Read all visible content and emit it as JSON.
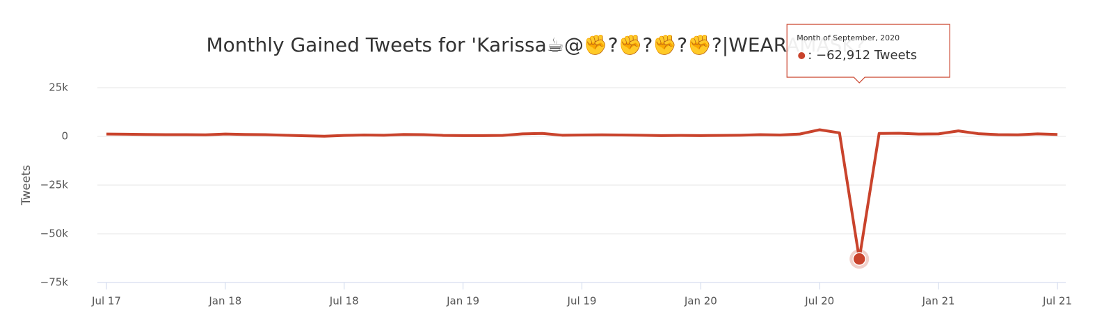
{
  "chart_data": {
    "type": "line",
    "title": "Monthly Gained Tweets for 'Karissa☕@✊?✊?✊?✊?|WEARAMASK?",
    "y_label": "Tweets",
    "x": [
      "2017-07",
      "2017-08",
      "2017-09",
      "2017-10",
      "2017-11",
      "2017-12",
      "2018-01",
      "2018-02",
      "2018-03",
      "2018-04",
      "2018-05",
      "2018-06",
      "2018-07",
      "2018-08",
      "2018-09",
      "2018-10",
      "2018-11",
      "2018-12",
      "2019-01",
      "2019-02",
      "2019-03",
      "2019-04",
      "2019-05",
      "2019-06",
      "2019-07",
      "2019-08",
      "2019-09",
      "2019-10",
      "2019-11",
      "2019-12",
      "2020-01",
      "2020-02",
      "2020-03",
      "2020-04",
      "2020-05",
      "2020-06",
      "2020-07",
      "2020-08",
      "2020-09",
      "2020-10",
      "2020-11",
      "2020-12",
      "2021-01",
      "2021-02",
      "2021-03",
      "2021-04",
      "2021-05",
      "2021-06",
      "2021-07"
    ],
    "series": [
      {
        "name": "Tweets",
        "color": "#c9432c",
        "values": [
          1200,
          1100,
          1000,
          900,
          900,
          800,
          1200,
          1000,
          900,
          600,
          300,
          100,
          500,
          700,
          600,
          1000,
          900,
          500,
          400,
          400,
          500,
          1300,
          1500,
          600,
          700,
          800,
          700,
          600,
          400,
          500,
          400,
          500,
          600,
          900,
          700,
          1200,
          3400,
          1800,
          -62912,
          1500,
          1600,
          1200,
          1300,
          2800,
          1400,
          900,
          800,
          1300,
          1000
        ]
      }
    ],
    "xticks": [
      {
        "value": "2017-07",
        "label": "Jul 17"
      },
      {
        "value": "2018-01",
        "label": "Jan 18"
      },
      {
        "value": "2018-07",
        "label": "Jul 18"
      },
      {
        "value": "2019-01",
        "label": "Jan 19"
      },
      {
        "value": "2019-07",
        "label": "Jul 19"
      },
      {
        "value": "2020-01",
        "label": "Jan 20"
      },
      {
        "value": "2020-07",
        "label": "Jul 20"
      },
      {
        "value": "2021-01",
        "label": "Jan 21"
      },
      {
        "value": "2021-07",
        "label": "Jul 21"
      }
    ],
    "ylim": [
      -75000,
      25000
    ],
    "yticks": [
      {
        "value": -75000,
        "label": "−75k"
      },
      {
        "value": -50000,
        "label": "−50k"
      },
      {
        "value": -25000,
        "label": "−25k"
      },
      0,
      {
        "value": 25000,
        "label": "25k"
      }
    ],
    "grid": true,
    "tooltip": {
      "x": "2020-09",
      "title": "Month of September, 2020",
      "label": ": −62,912 Tweets"
    }
  }
}
